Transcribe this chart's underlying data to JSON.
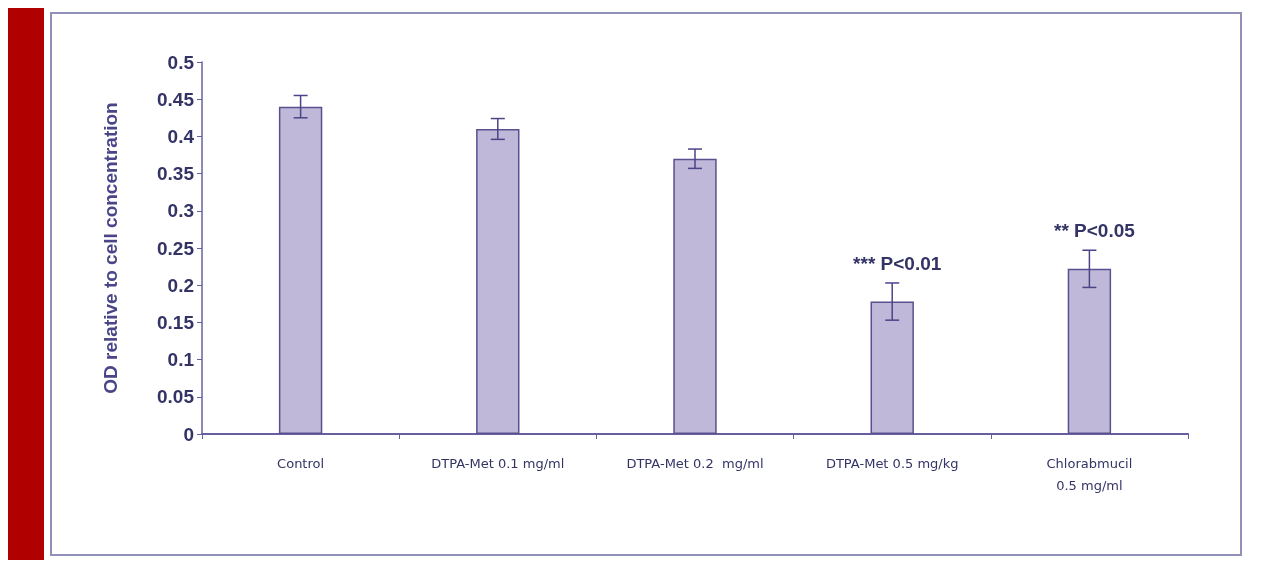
{
  "chart_data": {
    "type": "bar",
    "ylabel": "OD relative to cell concentration",
    "categories": [
      "Control",
      "DTPA-Met 0.1 mg/ml",
      "DTPA-Met 0.2  mg/ml",
      "DTPA-Met 0.5 mg/kg",
      "Chlorabmucil\n0.5 mg/ml"
    ],
    "values": [
      0.44,
      0.41,
      0.37,
      0.178,
      0.222
    ],
    "errors": [
      0.015,
      0.014,
      0.013,
      0.025,
      0.025
    ],
    "color": "#c0b8d8",
    "ylim": [
      0,
      0.5
    ],
    "yticks": [
      0,
      0.05,
      0.1,
      0.15,
      0.2,
      0.25,
      0.3,
      0.35,
      0.4,
      0.45,
      0.5
    ],
    "grid": false,
    "annotations": [
      {
        "text": "*** P<0.01",
        "x": "DTPA-Met 0.5 mg/kg",
        "y": 0.203
      },
      {
        "text": "** P<0.05",
        "x": "Chlorabmucil\n0.5 mg/ml",
        "y": 0.247
      }
    ]
  }
}
